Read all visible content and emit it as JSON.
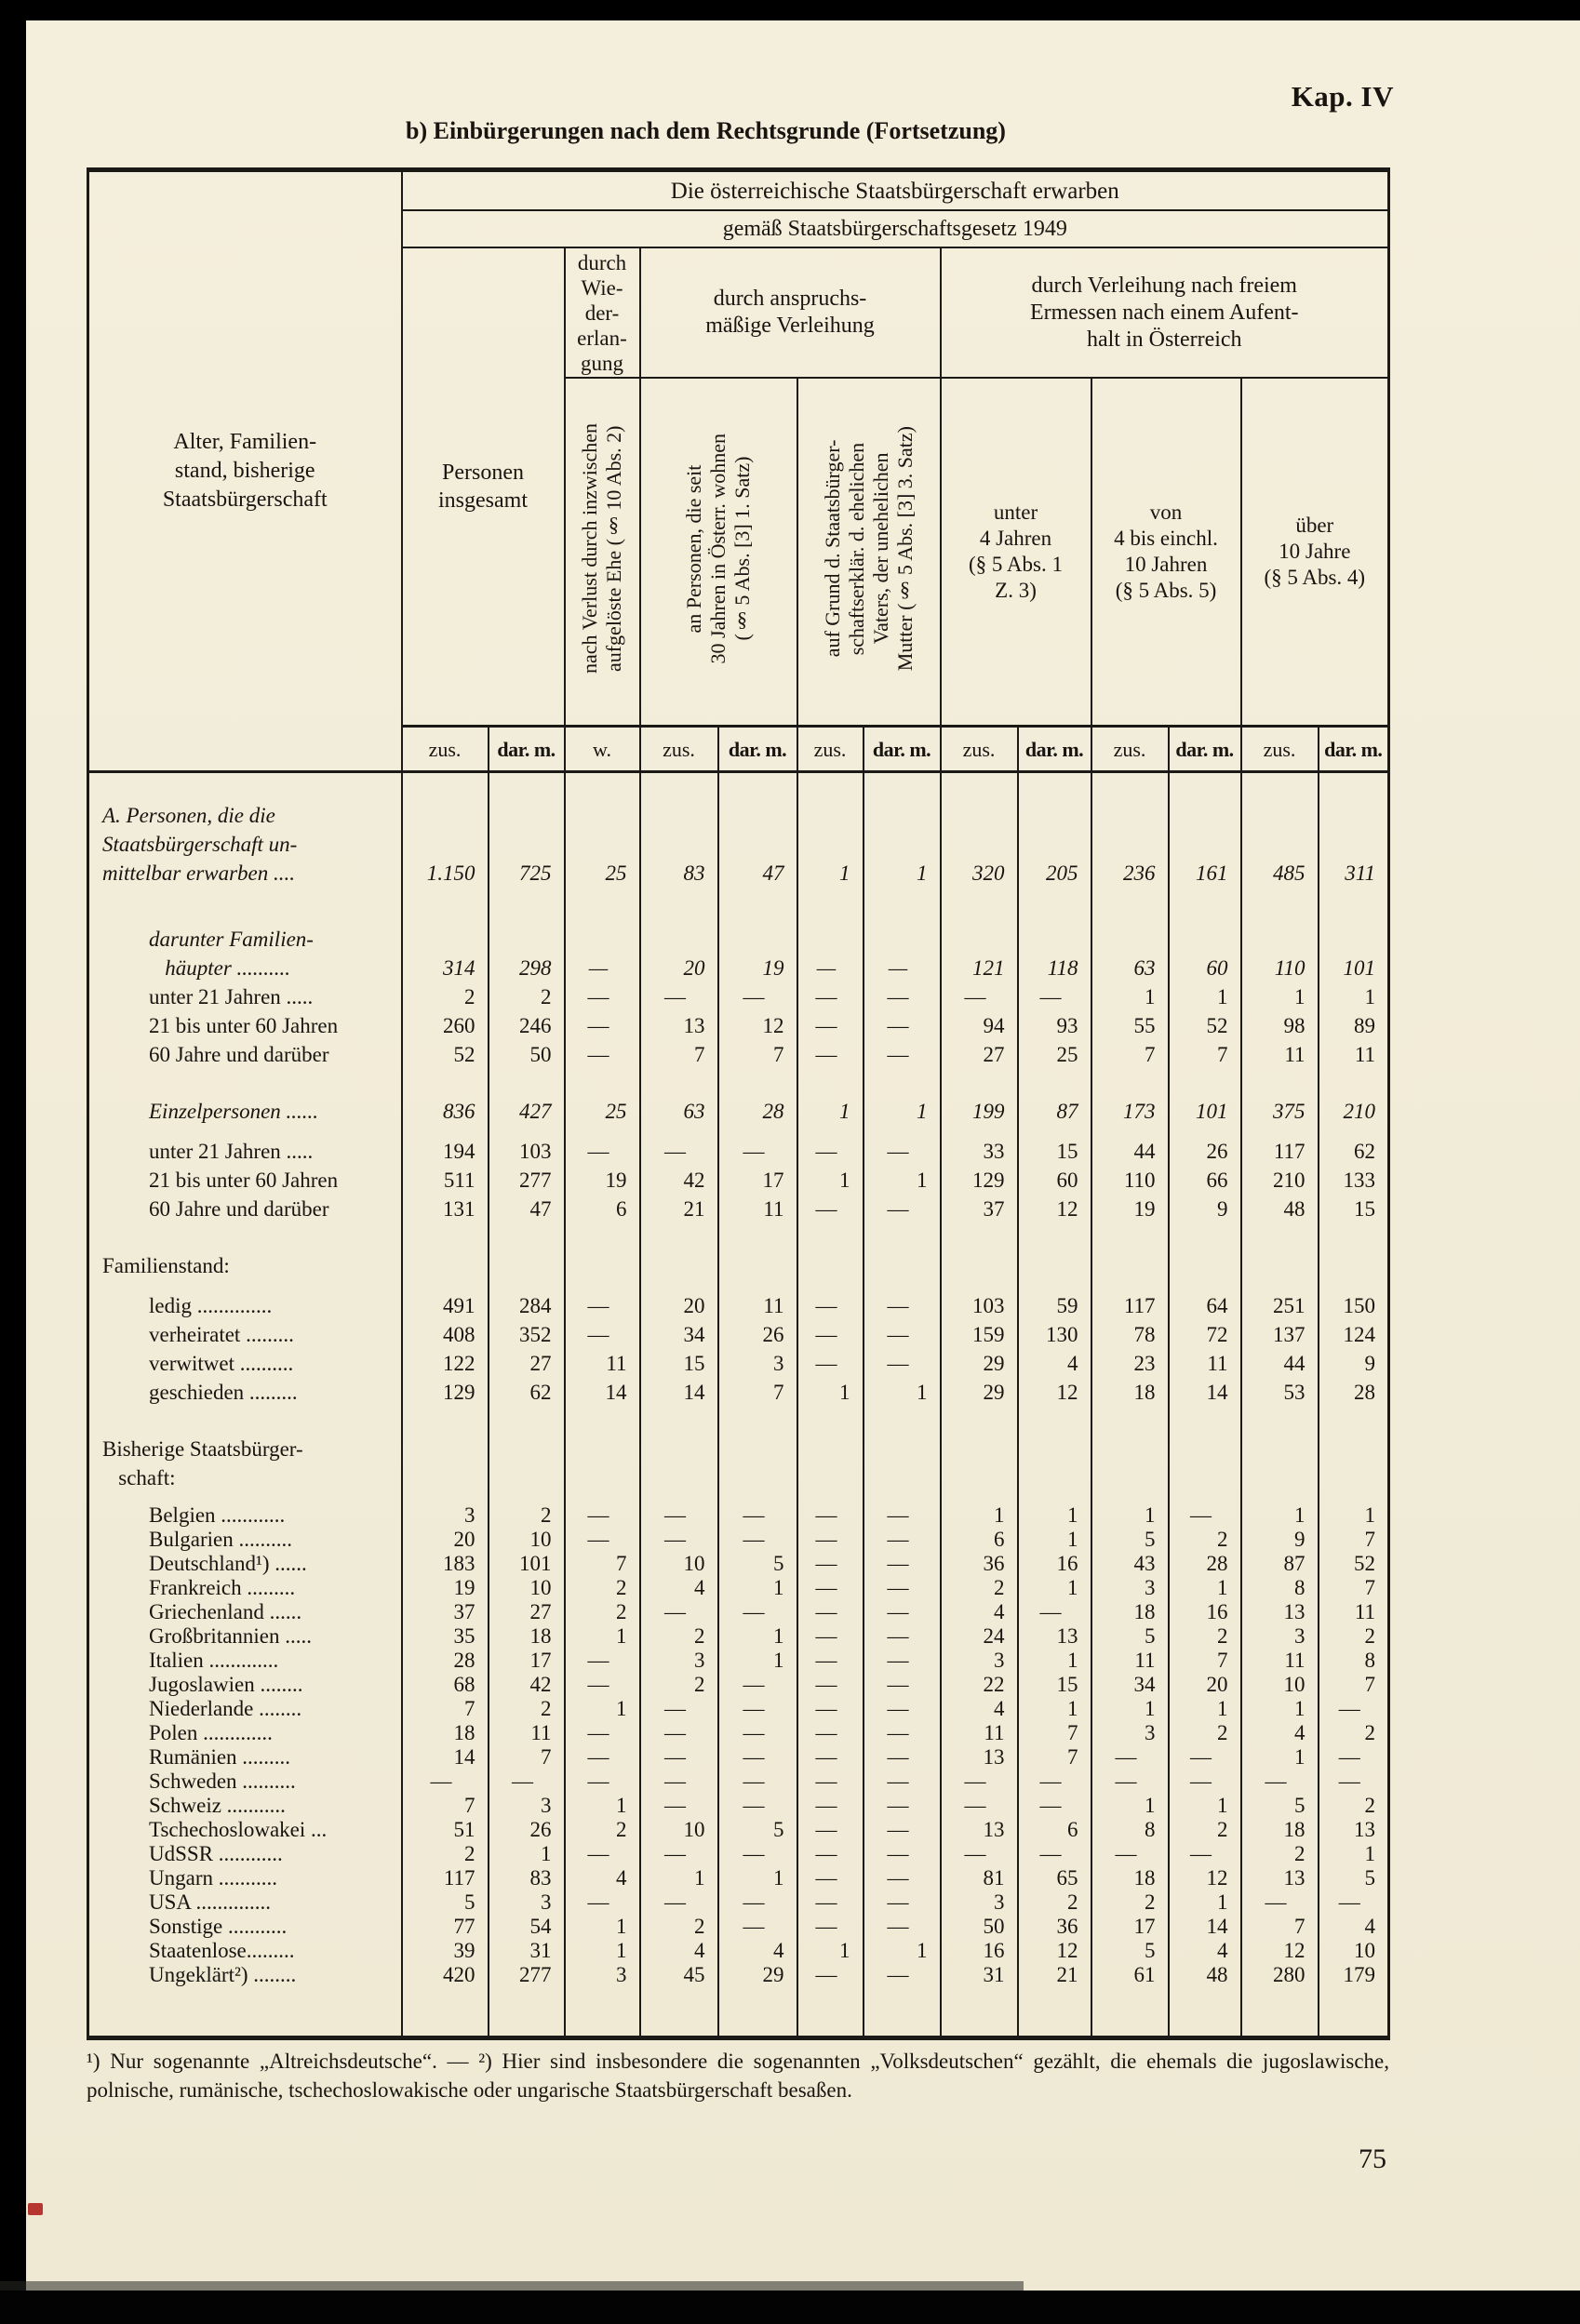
{
  "page": {
    "chapter_label": "Kap. IV",
    "title": "b) Einbürgerungen nach dem Rechtsgrunde (Fortsetzung)",
    "page_number": "75",
    "footnote": "¹) Nur sogenannte „Altreichsdeutsche“. — ²) Hier sind insbesondere die sogenannten „Volksdeutschen“ gezählt, die ehemals die jugoslawische, polnische, rumänische, tschechoslowakische oder ungarische Staatsbürgerschaft besaßen."
  },
  "table": {
    "header": {
      "stub": "Alter, Familien-\nstand, bisherige\nStaatsbürgerschaft",
      "top": "Die österreichische Staatsbürgerschaft erwarben",
      "law": "gemäß Staatsbürgerschaftsgesetz 1949",
      "personen": "Personen\ninsgesamt",
      "wieder": "durch\nWie-\nder-\nerlan-\ngung",
      "anspruch": "durch anspruchs-\nmäßige Verleihung",
      "ermessen": "durch Verleihung nach freiem\nErmessen nach einem Aufent-\nhalt in Österreich",
      "rot1": "nach Verlust durch inzwischen\naufgelöste Ehe (§ 10 Abs. 2)",
      "rot2": "an Personen, die seit\n30 Jahren in Österr. wohnen\n(§ 5 Abs. [3] 1. Satz)",
      "rot3": "auf Grund d. Staatsbürger-\nschaftserklär. d. ehelichen\nVaters, der unehelichen\nMutter (§ 5 Abs. [3] 3. Satz)",
      "age1": "unter\n4 Jahren\n(§ 5 Abs. 1\nZ. 3)",
      "age2": "von\n4 bis einchl.\n10 Jahren\n(§ 5  Abs. 5)",
      "age3": "über\n10  Jahre\n(§ 5  Abs. 4)",
      "cols": [
        "zus.",
        "dar. m.",
        "w.",
        "zus.",
        "dar. m.",
        "zus.",
        "dar. m.",
        "zus.",
        "dar. m.",
        "zus.",
        "dar. m.",
        "zus.",
        "dar. m."
      ]
    },
    "rows": [
      {
        "label": "A.  Personen,  die  die\nStaatsbürgerschaft  un-\nmittelbar erwarben ....",
        "kind": "total",
        "gap": "lg",
        "values": [
          "1.150",
          "725",
          "25",
          "83",
          "47",
          "1",
          "1",
          "320",
          "205",
          "236",
          "161",
          "485",
          "311"
        ]
      },
      {
        "label": "darunter Familien-\n   häupter ..........",
        "kind": "subtotal",
        "gap": "xl",
        "values": [
          "314",
          "298",
          "—",
          "20",
          "19",
          "—",
          "—",
          "121",
          "118",
          "63",
          "60",
          "110",
          "101"
        ]
      },
      {
        "label": "unter 21 Jahren .....",
        "kind": "detail",
        "gap": "",
        "values": [
          "2",
          "2",
          "—",
          "—",
          "—",
          "—",
          "—",
          "—",
          "—",
          "1",
          "1",
          "1",
          "1"
        ]
      },
      {
        "label": "21 bis unter 60 Jahren",
        "kind": "detail",
        "gap": "",
        "values": [
          "260",
          "246",
          "—",
          "13",
          "12",
          "—",
          "—",
          "94",
          "93",
          "55",
          "52",
          "98",
          "89"
        ]
      },
      {
        "label": "60 Jahre und darüber",
        "kind": "detail",
        "gap": "",
        "values": [
          "52",
          "50",
          "—",
          "7",
          "7",
          "—",
          "—",
          "27",
          "25",
          "7",
          "7",
          "11",
          "11"
        ]
      },
      {
        "label": "Einzelpersonen ......",
        "kind": "subtotal",
        "gap": "lg",
        "values": [
          "836",
          "427",
          "25",
          "63",
          "28",
          "1",
          "1",
          "199",
          "87",
          "173",
          "101",
          "375",
          "210"
        ]
      },
      {
        "label": "unter 21 Jahren .....",
        "kind": "detail",
        "gap": "sm",
        "values": [
          "194",
          "103",
          "—",
          "—",
          "—",
          "—",
          "—",
          "33",
          "15",
          "44",
          "26",
          "117",
          "62"
        ]
      },
      {
        "label": "21 bis unter 60 Jahren",
        "kind": "detail",
        "gap": "",
        "values": [
          "511",
          "277",
          "19",
          "42",
          "17",
          "1",
          "1",
          "129",
          "60",
          "110",
          "66",
          "210",
          "133"
        ]
      },
      {
        "label": "60 Jahre und darüber",
        "kind": "detail",
        "gap": "",
        "values": [
          "131",
          "47",
          "6",
          "21",
          "11",
          "—",
          "—",
          "37",
          "12",
          "19",
          "9",
          "48",
          "15"
        ]
      },
      {
        "label": "Familienstand:",
        "kind": "label",
        "gap": "lg",
        "values": []
      },
      {
        "label": "ledig ..............",
        "kind": "detail",
        "gap": "sm",
        "values": [
          "491",
          "284",
          "—",
          "20",
          "11",
          "—",
          "—",
          "103",
          "59",
          "117",
          "64",
          "251",
          "150"
        ]
      },
      {
        "label": "verheiratet .........",
        "kind": "detail",
        "gap": "",
        "values": [
          "408",
          "352",
          "—",
          "34",
          "26",
          "—",
          "—",
          "159",
          "130",
          "78",
          "72",
          "137",
          "124"
        ]
      },
      {
        "label": "verwitwet ..........",
        "kind": "detail",
        "gap": "",
        "values": [
          "122",
          "27",
          "11",
          "15",
          "3",
          "—",
          "—",
          "29",
          "4",
          "23",
          "11",
          "44",
          "9"
        ]
      },
      {
        "label": "geschieden .........",
        "kind": "detail",
        "gap": "",
        "values": [
          "129",
          "62",
          "14",
          "14",
          "7",
          "1",
          "1",
          "29",
          "12",
          "18",
          "14",
          "53",
          "28"
        ]
      },
      {
        "label": "Bisherige Staatsbürger-\n   schaft:",
        "kind": "label",
        "gap": "lg",
        "values": []
      },
      {
        "label": "Belgien ............",
        "kind": "country",
        "gap": "sm",
        "values": [
          "3",
          "2",
          "—",
          "—",
          "—",
          "—",
          "—",
          "1",
          "1",
          "1",
          "—",
          "1",
          "1"
        ]
      },
      {
        "label": "Bulgarien ..........",
        "kind": "country",
        "gap": "",
        "values": [
          "20",
          "10",
          "—",
          "—",
          "—",
          "—",
          "—",
          "6",
          "1",
          "5",
          "2",
          "9",
          "7"
        ]
      },
      {
        "label": "Deutschland¹) ......",
        "kind": "country",
        "gap": "",
        "values": [
          "183",
          "101",
          "7",
          "10",
          "5",
          "—",
          "—",
          "36",
          "16",
          "43",
          "28",
          "87",
          "52"
        ]
      },
      {
        "label": "Frankreich .........",
        "kind": "country",
        "gap": "",
        "values": [
          "19",
          "10",
          "2",
          "4",
          "1",
          "—",
          "—",
          "2",
          "1",
          "3",
          "1",
          "8",
          "7"
        ]
      },
      {
        "label": "Griechenland  ......",
        "kind": "country",
        "gap": "",
        "values": [
          "37",
          "27",
          "2",
          "—",
          "—",
          "—",
          "—",
          "4",
          "—",
          "18",
          "16",
          "13",
          "11"
        ]
      },
      {
        "label": "Großbritannien .....",
        "kind": "country",
        "gap": "",
        "values": [
          "35",
          "18",
          "1",
          "2",
          "1",
          "—",
          "—",
          "24",
          "13",
          "5",
          "2",
          "3",
          "2"
        ]
      },
      {
        "label": "Italien .............",
        "kind": "country",
        "gap": "",
        "values": [
          "28",
          "17",
          "—",
          "3",
          "1",
          "—",
          "—",
          "3",
          "1",
          "11",
          "7",
          "11",
          "8"
        ]
      },
      {
        "label": "Jugoslawien ........",
        "kind": "country",
        "gap": "",
        "values": [
          "68",
          "42",
          "—",
          "2",
          "—",
          "—",
          "—",
          "22",
          "15",
          "34",
          "20",
          "10",
          "7"
        ]
      },
      {
        "label": "Niederlande ........",
        "kind": "country",
        "gap": "",
        "values": [
          "7",
          "2",
          "1",
          "—",
          "—",
          "—",
          "—",
          "4",
          "1",
          "1",
          "1",
          "1",
          "—"
        ]
      },
      {
        "label": "Polen .............",
        "kind": "country",
        "gap": "",
        "values": [
          "18",
          "11",
          "—",
          "—",
          "—",
          "—",
          "—",
          "11",
          "7",
          "3",
          "2",
          "4",
          "2"
        ]
      },
      {
        "label": "Rumänien .........",
        "kind": "country",
        "gap": "",
        "values": [
          "14",
          "7",
          "—",
          "—",
          "—",
          "—",
          "—",
          "13",
          "7",
          "—",
          "—",
          "1",
          "—"
        ]
      },
      {
        "label": "Schweden ..........",
        "kind": "country",
        "gap": "",
        "values": [
          "—",
          "—",
          "—",
          "—",
          "—",
          "—",
          "—",
          "—",
          "—",
          "—",
          "—",
          "—",
          "—"
        ]
      },
      {
        "label": "Schweiz ...........",
        "kind": "country",
        "gap": "",
        "values": [
          "7",
          "3",
          "1",
          "—",
          "—",
          "—",
          "—",
          "—",
          "—",
          "1",
          "1",
          "5",
          "2"
        ]
      },
      {
        "label": "Tschechoslowakei ...",
        "kind": "country",
        "gap": "",
        "values": [
          "51",
          "26",
          "2",
          "10",
          "5",
          "—",
          "—",
          "13",
          "6",
          "8",
          "2",
          "18",
          "13"
        ]
      },
      {
        "label": "UdSSR ............",
        "kind": "country",
        "gap": "",
        "values": [
          "2",
          "1",
          "—",
          "—",
          "—",
          "—",
          "—",
          "—",
          "—",
          "—",
          "—",
          "2",
          "1"
        ]
      },
      {
        "label": "Ungarn  ...........",
        "kind": "country",
        "gap": "",
        "values": [
          "117",
          "83",
          "4",
          "1",
          "1",
          "—",
          "—",
          "81",
          "65",
          "18",
          "12",
          "13",
          "5"
        ]
      },
      {
        "label": "USA ..............",
        "kind": "country",
        "gap": "",
        "values": [
          "5",
          "3",
          "—",
          "—",
          "—",
          "—",
          "—",
          "3",
          "2",
          "2",
          "1",
          "—",
          "—"
        ]
      },
      {
        "label": "Sonstige ...........",
        "kind": "country",
        "gap": "",
        "values": [
          "77",
          "54",
          "1",
          "2",
          "—",
          "—",
          "—",
          "50",
          "36",
          "17",
          "14",
          "7",
          "4"
        ]
      },
      {
        "label": "Staatenlose.........",
        "kind": "country",
        "gap": "",
        "values": [
          "39",
          "31",
          "1",
          "4",
          "4",
          "1",
          "1",
          "16",
          "12",
          "5",
          "4",
          "12",
          "10"
        ]
      },
      {
        "label": "Ungeklärt²) ........",
        "kind": "country",
        "gap": "",
        "values": [
          "420",
          "277",
          "3",
          "45",
          "29",
          "—",
          "—",
          "31",
          "21",
          "61",
          "48",
          "280",
          "179"
        ]
      }
    ]
  }
}
